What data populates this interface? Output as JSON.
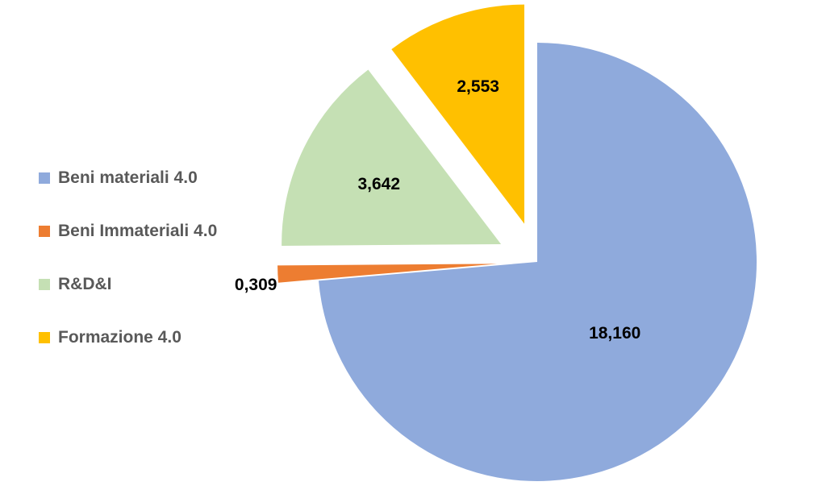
{
  "chart_data": {
    "type": "pie",
    "categories": [
      "Beni materiali 4.0",
      "Beni Immateriali 4.0",
      "R&D&I",
      "Formazione 4.0"
    ],
    "values": [
      18.16,
      0.309,
      3.642,
      2.553
    ],
    "data_labels": [
      "18,160",
      "0,309",
      "3,642",
      "2,553"
    ],
    "colors": [
      "#8FAADC",
      "#ED7D31",
      "#C5E0B4",
      "#FFC000"
    ],
    "exploded": [
      false,
      true,
      true,
      true
    ],
    "legend_position": "left",
    "title": ""
  }
}
